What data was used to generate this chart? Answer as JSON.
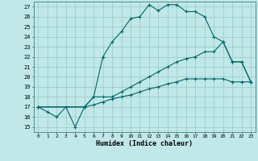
{
  "xlabel": "Humidex (Indice chaleur)",
  "ylabel": "",
  "bg_color": "#c0e8e8",
  "line_color": "#006868",
  "xlim": [
    -0.5,
    23.5
  ],
  "ylim": [
    14.5,
    27.5
  ],
  "xticks": [
    0,
    1,
    2,
    3,
    4,
    5,
    6,
    7,
    8,
    9,
    10,
    11,
    12,
    13,
    14,
    15,
    16,
    17,
    18,
    19,
    20,
    21,
    22,
    23
  ],
  "yticks": [
    15,
    16,
    17,
    18,
    19,
    20,
    21,
    22,
    23,
    24,
    25,
    26,
    27
  ],
  "line1_x": [
    0,
    1,
    2,
    3,
    4,
    5,
    6,
    7,
    8,
    9,
    10,
    11,
    12,
    13,
    14,
    15,
    16,
    17,
    18,
    19,
    20,
    21,
    22,
    23
  ],
  "line1_y": [
    17,
    16.5,
    16,
    17,
    15,
    17,
    18,
    22,
    23.5,
    24.5,
    25.8,
    26,
    27.2,
    26.6,
    27.2,
    27.2,
    26.5,
    26.5,
    26,
    24,
    23.5,
    21.5,
    21.5,
    19.5
  ],
  "line2_x": [
    0,
    5,
    6,
    7,
    8,
    9,
    10,
    11,
    12,
    13,
    14,
    15,
    16,
    17,
    18,
    19,
    20,
    21,
    22,
    23
  ],
  "line2_y": [
    17,
    17,
    18,
    18,
    18,
    18.5,
    19,
    19.5,
    20,
    20.5,
    21,
    21.5,
    21.8,
    22,
    22.5,
    22.5,
    23.5,
    21.5,
    21.5,
    19.5
  ],
  "line3_x": [
    0,
    5,
    6,
    7,
    8,
    9,
    10,
    11,
    12,
    13,
    14,
    15,
    16,
    17,
    18,
    19,
    20,
    21,
    22,
    23
  ],
  "line3_y": [
    17,
    17,
    17.2,
    17.5,
    17.8,
    18,
    18.2,
    18.5,
    18.8,
    19,
    19.3,
    19.5,
    19.8,
    19.8,
    19.8,
    19.8,
    19.8,
    19.5,
    19.5,
    19.5
  ]
}
